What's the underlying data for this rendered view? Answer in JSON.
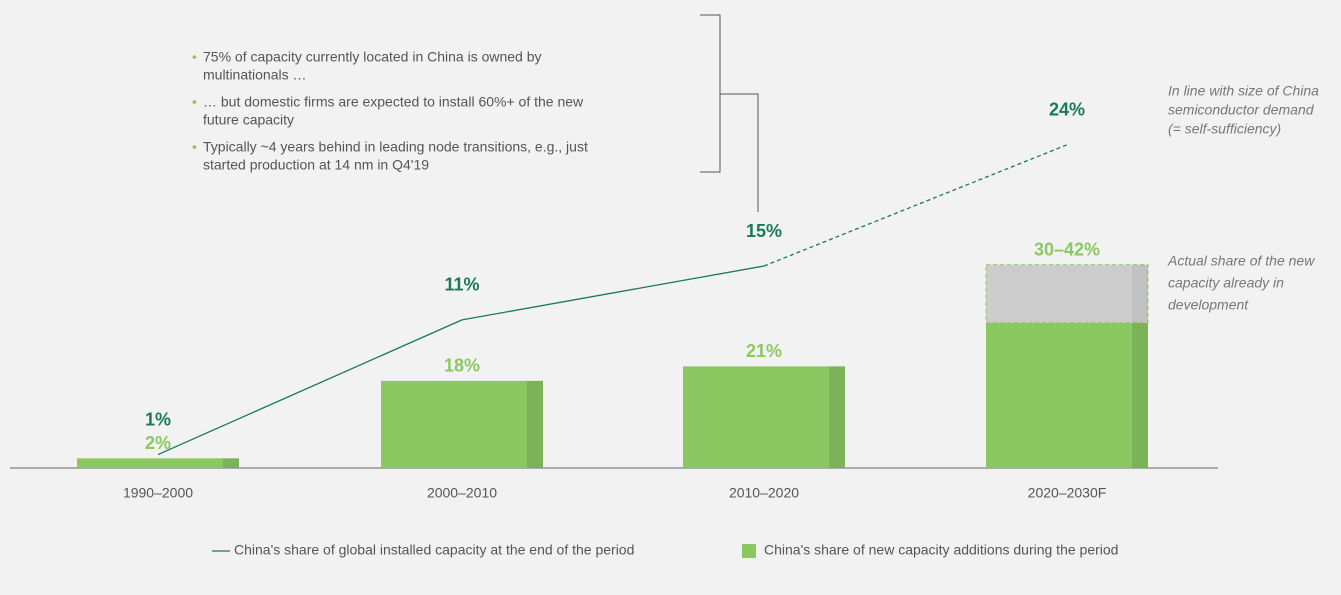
{
  "chart_data": {
    "type": "bar",
    "categories": [
      "1990–2000",
      "2000–2010",
      "2010–2020",
      "2020–2030F"
    ],
    "series": [
      {
        "name": "China's share of new capacity additions during the period",
        "type": "bar",
        "color": "#8cc862",
        "high_color": "#cccccc",
        "values": [
          2,
          18,
          21,
          30
        ],
        "high": [
          null,
          null,
          null,
          42
        ],
        "value_labels": [
          "2%",
          "18%",
          "21%",
          "30–42%"
        ]
      },
      {
        "name": "China's share of global installed capacity at the end of the period",
        "type": "line",
        "axis": "y2",
        "color": "#1a7a56",
        "values": [
          1,
          11,
          15,
          24
        ],
        "dashed": [
          false,
          false,
          false,
          true
        ],
        "value_labels": [
          "1%",
          "11%",
          "15%",
          "24%"
        ]
      }
    ],
    "ylim": [
      0,
      50
    ],
    "y2lim": [
      0,
      30
    ],
    "annotations": {
      "bullets": [
        [
          "75% of capacity currently located in China is owned by",
          "multinationals …"
        ],
        [
          "… but domestic firms are expected to install 60%+ of the new",
          "future capacity"
        ],
        [
          "Typically ~4 years behind in leading node transitions, e.g., just",
          "started production at 14 nm in Q4'19"
        ]
      ],
      "line_note": [
        "In line with size of China",
        "semiconductor demand",
        "(= self-sufficiency)"
      ],
      "bar_note": [
        "Actual share of the new",
        "capacity already in",
        "development"
      ]
    }
  }
}
